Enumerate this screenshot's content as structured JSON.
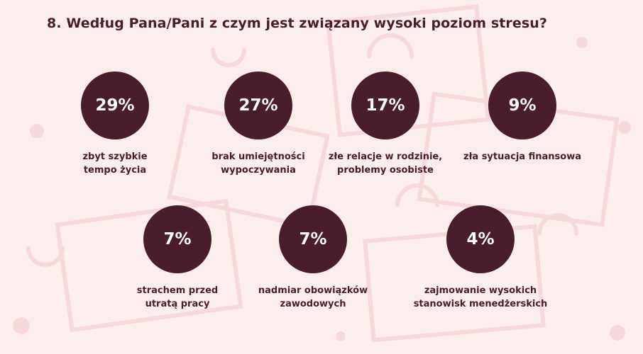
{
  "title": "8. Według Pana/Pani z czym jest związany wysoki poziom stresu?",
  "colors": {
    "background": "#fdeeee",
    "circle": "#4a1d2c",
    "text": "#4a1d2c"
  },
  "chart_data": {
    "type": "bar",
    "title": "8. Według Pana/Pani z czym jest związany wysoki poziom stresu?",
    "unit": "%",
    "categories": [
      [
        "zbyt szybkie",
        "tempo życia"
      ],
      [
        "brak umiejętności",
        "wypoczywania"
      ],
      [
        "złe relacje w rodzinie,",
        "problemy osobiste"
      ],
      [
        "zła sytuacja finansowa"
      ],
      [
        "strachem przed",
        "utratą pracy"
      ],
      [
        "nadmiar obowiązków",
        "zawodowych"
      ],
      [
        "zajmowanie wysokich",
        "stanowisk menedżerskich"
      ]
    ],
    "values": [
      29,
      27,
      17,
      9,
      7,
      7,
      4
    ],
    "value_labels": [
      "29%",
      "27%",
      "17%",
      "9%",
      "7%",
      "7%",
      "4%"
    ]
  }
}
